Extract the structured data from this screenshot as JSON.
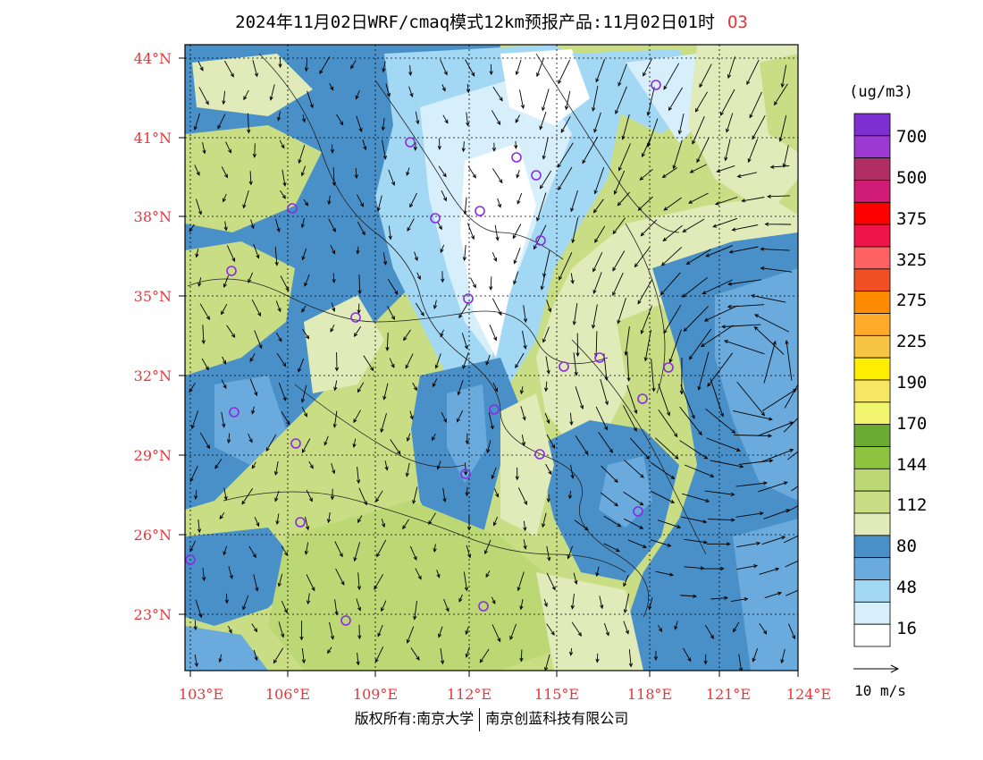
{
  "title": {
    "main": "2024年11月02日WRF/cmaq模式12km预报产品:11月02日01时",
    "pollutant": "O3"
  },
  "map": {
    "lat_labels": [
      "44°N",
      "41°N",
      "38°N",
      "35°N",
      "32°N",
      "29°N",
      "26°N",
      "23°N"
    ],
    "lon_labels": [
      "103°E",
      "106°E",
      "109°E",
      "112°E",
      "115°E",
      "118°E",
      "121°E",
      "124°E"
    ],
    "label_color": "#e8363a"
  },
  "colorbar": {
    "unit": "(ug/m3)",
    "bins": [
      {
        "color": "#7d2fd1"
      },
      {
        "color": "#9c39d3"
      },
      {
        "color": "#b02e63"
      },
      {
        "color": "#d11c77"
      },
      {
        "color": "#ff0000"
      },
      {
        "color": "#f01548"
      },
      {
        "color": "#ff6262"
      },
      {
        "color": "#f04f23"
      },
      {
        "color": "#ff8c00"
      },
      {
        "color": "#ffaa2a"
      },
      {
        "color": "#f6c544"
      },
      {
        "color": "#ffee00"
      },
      {
        "color": "#f6e663"
      },
      {
        "color": "#f2f56e"
      },
      {
        "color": "#6bab33"
      },
      {
        "color": "#8dc43f"
      },
      {
        "color": "#bcd874"
      },
      {
        "color": "#c9dd85"
      },
      {
        "color": "#e1ebb9"
      },
      {
        "color": "#4a90c8"
      },
      {
        "color": "#6aaadc"
      },
      {
        "color": "#a3d8f4"
      },
      {
        "color": "#d6effb"
      },
      {
        "color": "#ffffff"
      }
    ],
    "labels": [
      "700",
      "500",
      "375",
      "325",
      "275",
      "225",
      "190",
      "170",
      "144",
      "112",
      "80",
      "48",
      "16"
    ]
  },
  "vector_legend": {
    "label": "10 m/s"
  },
  "footer": {
    "copyright": "版权所有:南京大学",
    "company": "南京创蓝科技有限公司"
  }
}
